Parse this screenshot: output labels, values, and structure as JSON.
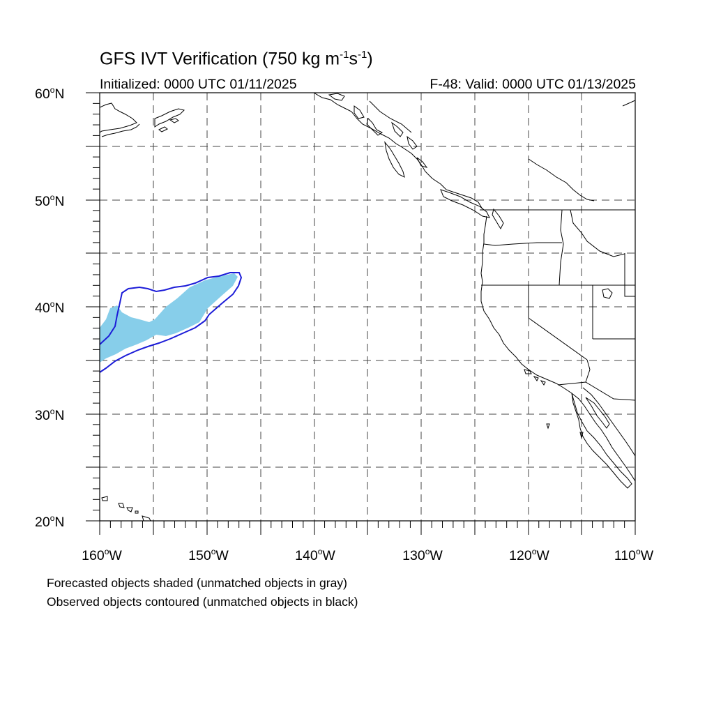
{
  "title": {
    "main": "GFS IVT Verification (750 kg m",
    "exp1": "-1",
    "mid": "s",
    "exp2": "-1",
    "close": ")"
  },
  "initialized": "Initialized: 0000 UTC 01/11/2025",
  "valid": "F-48: Valid: 0000 UTC 01/13/2025",
  "lat_labels": [
    {
      "num": "60",
      "deg": "o",
      "hem": "N"
    },
    {
      "num": "50",
      "deg": "o",
      "hem": "N"
    },
    {
      "num": "40",
      "deg": "o",
      "hem": "N"
    },
    {
      "num": "30",
      "deg": "o",
      "hem": "N"
    },
    {
      "num": "20",
      "deg": "o",
      "hem": "N"
    }
  ],
  "lon_labels": [
    {
      "num": "160",
      "deg": "o",
      "hem": "W"
    },
    {
      "num": "150",
      "deg": "o",
      "hem": "W"
    },
    {
      "num": "140",
      "deg": "o",
      "hem": "W"
    },
    {
      "num": "130",
      "deg": "o",
      "hem": "W"
    },
    {
      "num": "120",
      "deg": "o",
      "hem": "W"
    },
    {
      "num": "110",
      "deg": "o",
      "hem": "W"
    }
  ],
  "notes": [
    "Forecasted objects shaded (unmatched objects in gray)",
    "Observed objects contoured (unmatched objects in black)"
  ],
  "map": {
    "lon_range": [
      -160,
      -110
    ],
    "lat_range": [
      20,
      60
    ],
    "grid_spacing_deg": 5,
    "grid_style": "dashed",
    "forecast_fill_color": "#87ceea",
    "observed_contour_color": "#1c1cd8",
    "coastline_color": "#000000"
  }
}
